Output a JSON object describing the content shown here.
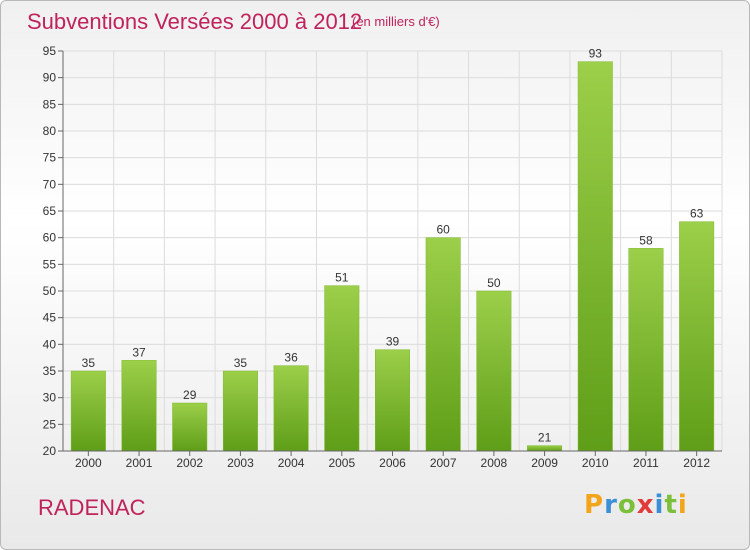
{
  "header": {
    "title": "Subventions Versées 2000 à 2012",
    "subtitle": "(en milliers d'€)"
  },
  "footer": {
    "place": "RADENAC",
    "logo_letters": [
      "P",
      "r",
      "o",
      "x",
      "i",
      "t",
      "i"
    ],
    "logo_colors": [
      "#f2a51a",
      "#3a8fd6",
      "#7bbf3a",
      "#e23b3b",
      "#3a8fd6",
      "#7bbf3a",
      "#f2a51a"
    ]
  },
  "chart_data": {
    "type": "bar",
    "categories": [
      "2000",
      "2001",
      "2002",
      "2003",
      "2004",
      "2005",
      "2006",
      "2007",
      "2008",
      "2009",
      "2010",
      "2011",
      "2012"
    ],
    "values": [
      35,
      37,
      29,
      35,
      36,
      51,
      39,
      60,
      50,
      21,
      93,
      58,
      63
    ],
    "title": "Subventions Versées 2000 à 2012",
    "subtitle": "(en milliers d'€)",
    "ylim": [
      20,
      95
    ],
    "yticks": [
      20,
      25,
      30,
      35,
      40,
      45,
      50,
      55,
      60,
      65,
      70,
      75,
      80,
      85,
      90,
      95
    ],
    "grid": true,
    "bar_color_top": "#9ccf4a",
    "bar_color_bottom": "#5f9e18"
  }
}
